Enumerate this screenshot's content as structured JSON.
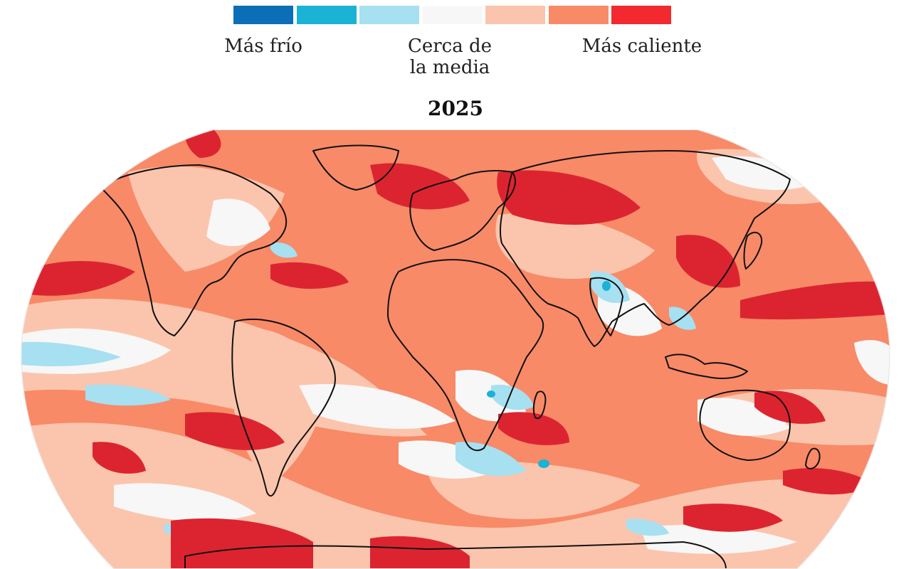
{
  "legend": {
    "colors": [
      "#0a6fb6",
      "#1ab3d6",
      "#a6e0f1",
      "#f7f7f7",
      "#fbc5ad",
      "#f88a68",
      "#f22a30"
    ],
    "label_cold": "Más frío",
    "label_near": "Cerca de\nla media",
    "label_hot": "Más caliente"
  },
  "map": {
    "title": "2025",
    "ocean_color": "#f88a68",
    "coastline_color": "#111111",
    "projection": "robinson"
  }
}
